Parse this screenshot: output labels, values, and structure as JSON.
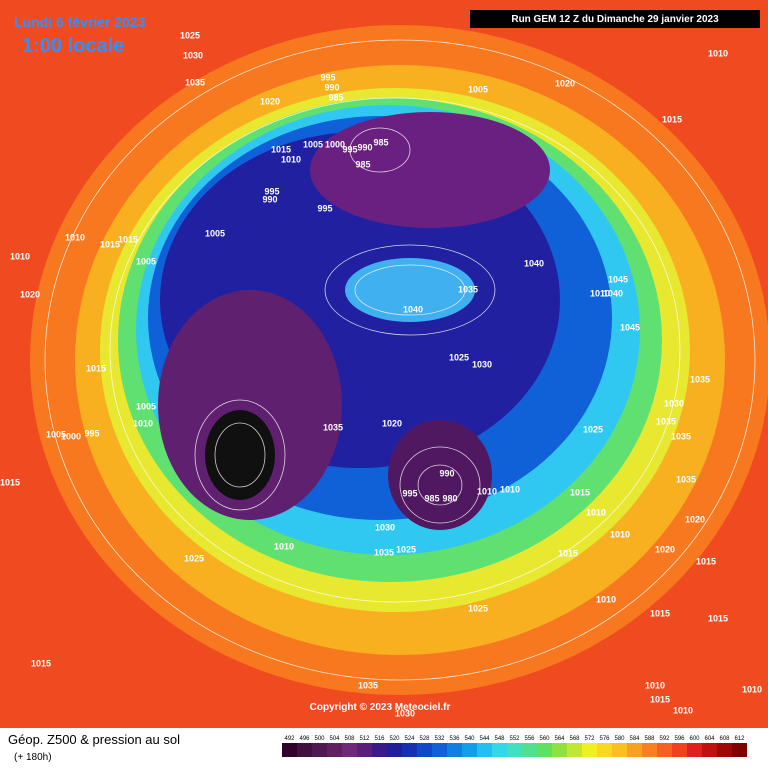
{
  "header": {
    "date": "Lundi 6 février 2023",
    "time": "1:00 locale",
    "run": "Run GEM 12 Z du Dimanche 29 janvier 2023"
  },
  "footer": {
    "title": "Géop. Z500 & pression au sol",
    "subtitle": "(+ 180h)",
    "copyright": "Copyright © 2023 Meteociel.fr"
  },
  "isobar_labels": [
    1025,
    1030,
    1035,
    1020,
    995,
    990,
    985,
    1005,
    1020,
    1010,
    1015,
    1015,
    1010,
    1005,
    1000,
    995,
    990,
    985,
    985,
    995,
    990,
    995,
    1005,
    1010,
    1015,
    1015,
    1010,
    1005,
    1040,
    1045,
    1010,
    1040,
    1020,
    1035,
    1040,
    1045,
    1025,
    1030,
    1015,
    1035,
    1005,
    1030,
    1035,
    1010,
    1025,
    1035,
    1020,
    1035,
    1005,
    1000,
    995,
    990,
    1015,
    1035,
    1010,
    1010,
    995,
    985,
    980,
    1015,
    1010,
    1010,
    1020,
    1030,
    1010,
    1025,
    1035,
    1020,
    1025,
    1015,
    1015,
    1010,
    1025,
    1015,
    1015,
    1015,
    1010,
    1035,
    1030,
    1010,
    1010,
    1015
  ],
  "colorbar": {
    "ticks": [
      492,
      496,
      500,
      504,
      508,
      512,
      516,
      520,
      524,
      528,
      532,
      536,
      540,
      544,
      548,
      552,
      556,
      560,
      564,
      568,
      572,
      576,
      580,
      584,
      588,
      592,
      596,
      600,
      604,
      608,
      612
    ],
    "colors": [
      "#300028",
      "#40103f",
      "#501850",
      "#602060",
      "#702878",
      "#5a1f7a",
      "#3a1a8a",
      "#1f1f9a",
      "#1530b0",
      "#1048c8",
      "#1060d8",
      "#1080e0",
      "#10a0e8",
      "#20c0f0",
      "#30d8e8",
      "#40e0c0",
      "#50e090",
      "#60e060",
      "#90e040",
      "#c0e830",
      "#f0f020",
      "#f8d820",
      "#f8c020",
      "#f8a020",
      "#f88020",
      "#f86020",
      "#f04020",
      "#e02020",
      "#c01010",
      "#a00808",
      "#800000"
    ]
  }
}
